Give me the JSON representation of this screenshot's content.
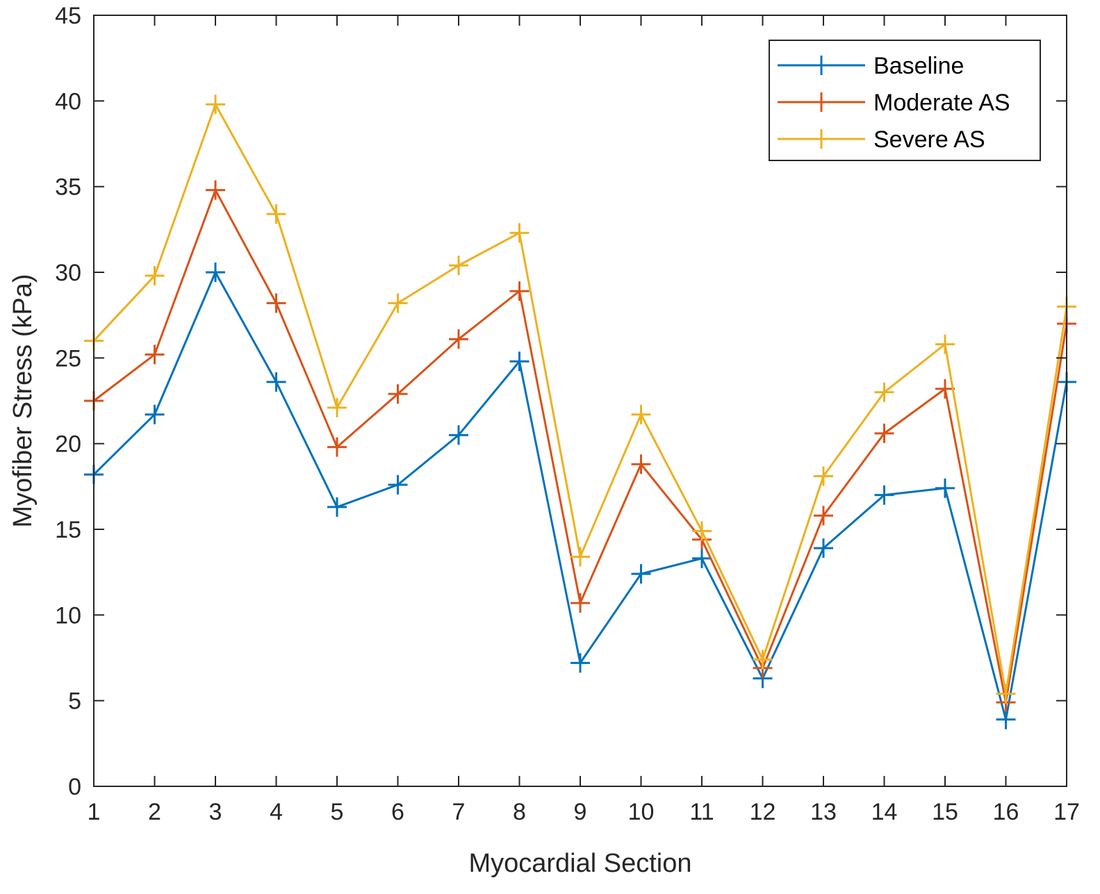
{
  "chart_data": {
    "type": "line",
    "title": "",
    "xlabel": "Myocardial Section",
    "ylabel": "Myofiber Stress (kPa)",
    "x": [
      1,
      2,
      3,
      4,
      5,
      6,
      7,
      8,
      9,
      10,
      11,
      12,
      13,
      14,
      15,
      16,
      17
    ],
    "xlim": [
      1,
      17
    ],
    "ylim": [
      0,
      45
    ],
    "xticks": [
      "1",
      "2",
      "3",
      "4",
      "5",
      "6",
      "7",
      "8",
      "9",
      "10",
      "11",
      "12",
      "13",
      "14",
      "15",
      "16",
      "17"
    ],
    "yticks": [
      "0",
      "5",
      "10",
      "15",
      "20",
      "25",
      "30",
      "35",
      "40",
      "45"
    ],
    "grid": false,
    "marker": "+",
    "legend_position": "top-right",
    "series": [
      {
        "name": "Baseline",
        "color": "#0072BD",
        "values": [
          18.2,
          21.7,
          30.0,
          23.6,
          16.3,
          17.6,
          20.5,
          24.8,
          7.2,
          12.4,
          13.3,
          6.3,
          13.9,
          17.0,
          17.4,
          3.9,
          23.6
        ]
      },
      {
        "name": "Moderate AS",
        "color": "#D95319",
        "values": [
          22.5,
          25.2,
          34.8,
          28.2,
          19.8,
          22.9,
          26.1,
          28.9,
          10.7,
          18.8,
          14.4,
          6.9,
          15.8,
          20.6,
          23.2,
          4.9,
          27.0
        ]
      },
      {
        "name": "Severe AS",
        "color": "#EDB120",
        "values": [
          26.0,
          29.8,
          39.8,
          33.4,
          22.1,
          28.2,
          30.4,
          32.3,
          13.4,
          21.7,
          14.9,
          7.4,
          18.1,
          23.0,
          25.8,
          5.4,
          28.0
        ]
      }
    ]
  }
}
